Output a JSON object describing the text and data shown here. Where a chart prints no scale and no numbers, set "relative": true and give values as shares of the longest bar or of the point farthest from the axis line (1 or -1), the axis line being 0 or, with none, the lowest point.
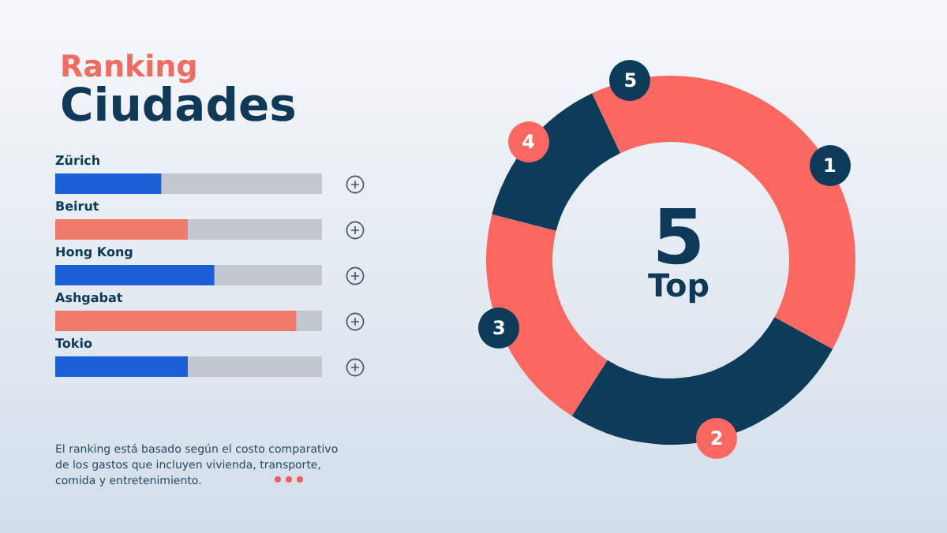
{
  "chart_data": [
    {
      "type": "bar",
      "orientation": "horizontal",
      "relative": true,
      "title": "Ranking",
      "subtitle": "Ciudades",
      "categories": [
        "Zürich",
        "Beirut",
        "Hong Kong",
        "Ashgabat",
        "Tokio"
      ],
      "values": [
        0.44,
        0.55,
        0.66,
        1,
        0.55
      ],
      "colors": [
        "#1a5fd6",
        "#f07a6a",
        "#1a5fd6",
        "#f07a6a",
        "#1a5fd6"
      ],
      "annotations": [
        "El ranking está basado según el costo comparativo de los gastos que incluyen vivienda, transporte, comida y entretenimiento."
      ]
    },
    {
      "type": "donut",
      "title": "5",
      "subtitle": "Top",
      "categories": [
        "1",
        "2",
        "3",
        "4",
        "5"
      ],
      "values": [
        33,
        26,
        20,
        14,
        7
      ],
      "colors": [
        "#fc675f",
        "#0d3b5a",
        "#fc675f",
        "#0d3b5a",
        "#fc675f"
      ]
    }
  ]
}
